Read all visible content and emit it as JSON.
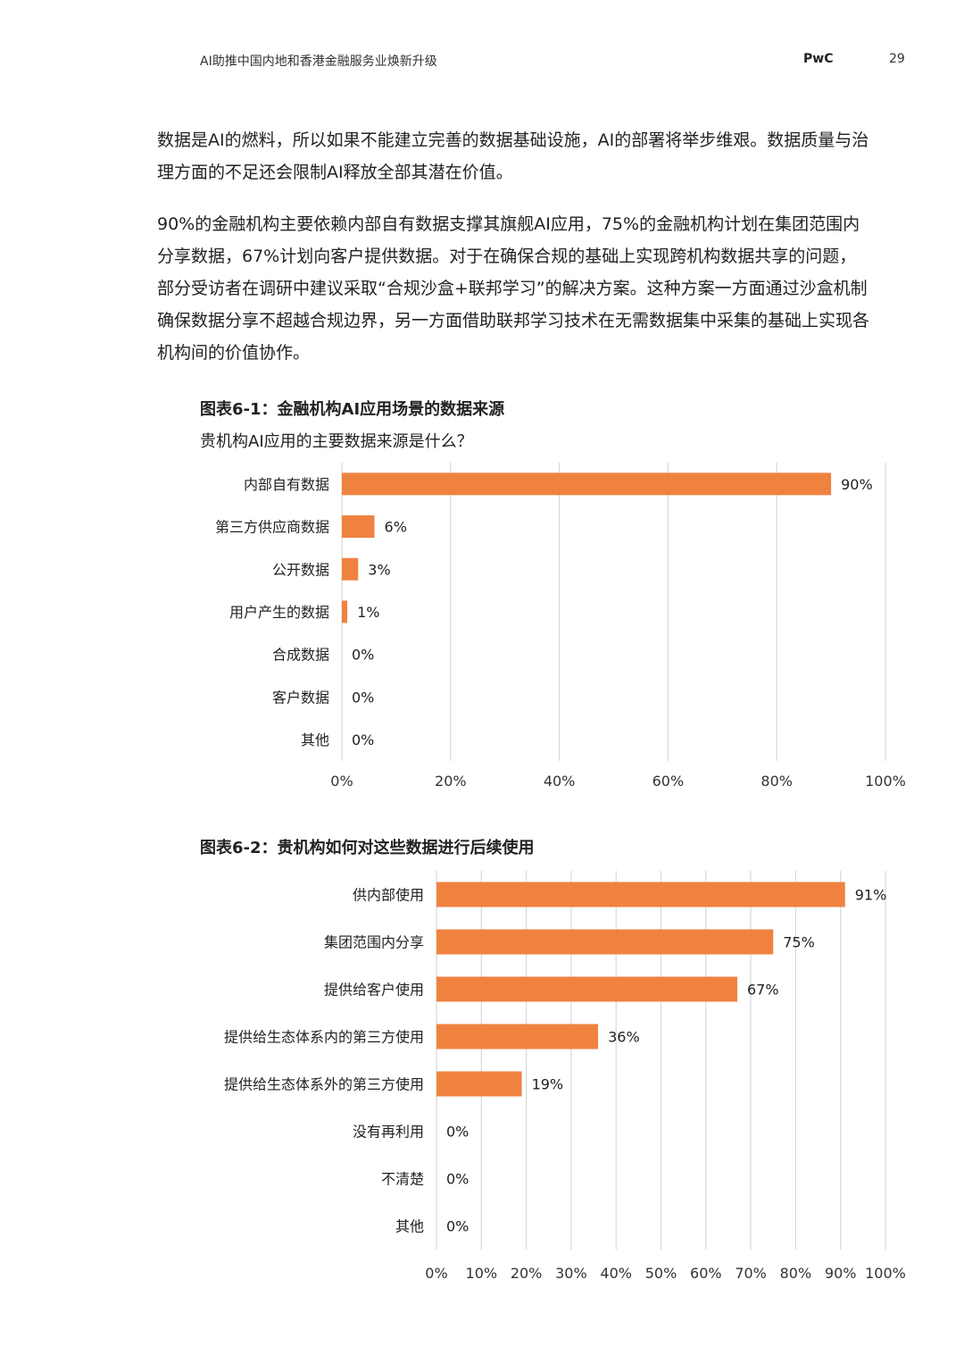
{
  "header": {
    "title": "AI助推中国内地和香港金融服务业焕新升级",
    "brand": "PwC",
    "page_number": "29"
  },
  "body": {
    "paragraph1": "数据是AI的燃料，所以如果不能建立完善的数据基础设施，AI的部署将举步维艰。数据质量与治理方面的不足还会限制AI释放全部其潜在价值。",
    "paragraph2": "90%的金融机构主要依赖内部自有数据支撑其旗舰AI应用，75%的金融机构计划在集团范围内分享数据，67%计划向客户提供数据。对于在确保合规的基础上实现跨机构数据共享的问题，部分受访者在调研中建议采取“合规沙盒+联邦学习”的解决方案。这种方案一方面通过沙盒机制确保数据分享不超越合规边界，另一方面借助联邦学习技术在无需数据集中采集的基础上实现各机构间的价值协作。"
  },
  "colors": {
    "bar": "#F08240",
    "grid": "#d9d9d9",
    "text": "#222222"
  },
  "chart_data": [
    {
      "type": "bar",
      "orientation": "horizontal",
      "title": "图表6-1：金融机构AI应用场景的数据来源",
      "subtitle": "贵机构AI应用的主要数据来源是什么？",
      "categories": [
        "内部自有数据",
        "第三方供应商数据",
        "公开数据",
        "用户产生的数据",
        "合成数据",
        "客户数据",
        "其他"
      ],
      "values": [
        90,
        6,
        3,
        1,
        0,
        0,
        0
      ],
      "value_labels": [
        "90%",
        "6%",
        "3%",
        "1%",
        "0%",
        "0%",
        "0%"
      ],
      "xlim": [
        0,
        100
      ],
      "xticks": [
        0,
        20,
        40,
        60,
        80,
        100
      ],
      "xtick_labels": [
        "0%",
        "20%",
        "40%",
        "60%",
        "80%",
        "100%"
      ],
      "grid": true
    },
    {
      "type": "bar",
      "orientation": "horizontal",
      "title": "图表6-2：贵机构如何对这些数据进行后续使用",
      "categories": [
        "供内部使用",
        "集团范围内分享",
        "提供给客户使用",
        "提供给生态体系内的第三方使用",
        "提供给生态体系外的第三方使用",
        "没有再利用",
        "不清楚",
        "其他"
      ],
      "values": [
        91,
        75,
        67,
        36,
        19,
        0,
        0,
        0
      ],
      "value_labels": [
        "91%",
        "75%",
        "67%",
        "36%",
        "19%",
        "0%",
        "0%",
        "0%"
      ],
      "xlim": [
        0,
        100
      ],
      "xticks": [
        0,
        10,
        20,
        30,
        40,
        50,
        60,
        70,
        80,
        90,
        100
      ],
      "xtick_labels": [
        "0%",
        "10%",
        "20%",
        "30%",
        "40%",
        "50%",
        "60%",
        "70%",
        "80%",
        "90%",
        "100%"
      ],
      "grid": true
    }
  ]
}
